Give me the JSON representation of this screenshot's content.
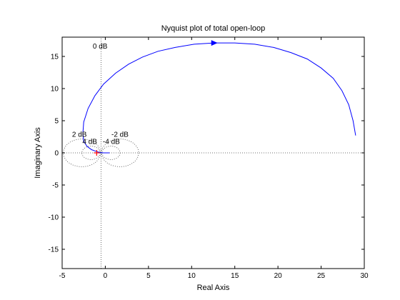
{
  "chart_data": {
    "type": "line",
    "title": "Nyquist plot of total open-loop",
    "xlabel": "Real Axis",
    "ylabel": "Imaginary Axis",
    "xlim": [
      -5,
      30
    ],
    "ylim": [
      -18,
      18
    ],
    "xticks": [
      -5,
      0,
      5,
      10,
      15,
      20,
      25,
      30
    ],
    "yticks": [
      -15,
      -10,
      -5,
      0,
      5,
      10,
      15
    ],
    "grid": "M-circles (dotted)",
    "colors": {
      "curve": "#0000ff",
      "critical_point": "#ff0000",
      "axes": "#000000"
    },
    "series": [
      {
        "x": [
          29.0,
          28.7,
          28.2,
          27.4,
          26.4,
          25.0,
          23.4,
          21.5,
          19.5,
          17.3,
          15.0,
          12.6,
          10.3,
          8.1,
          6.1,
          4.3,
          2.7,
          1.2,
          -0.2,
          -1.2,
          -2.0,
          -2.5,
          -2.6,
          -2.5,
          -2.1,
          -1.6,
          -1.0,
          -0.6,
          -0.2,
          0.2,
          0.5
        ],
        "y": [
          2.7,
          5.0,
          7.5,
          9.7,
          11.6,
          13.2,
          14.6,
          15.6,
          16.4,
          16.9,
          17.1,
          17.1,
          16.9,
          16.4,
          15.8,
          14.9,
          13.8,
          12.4,
          10.7,
          8.9,
          6.9,
          4.8,
          3.0,
          1.8,
          1.0,
          0.5,
          0.2,
          0.05,
          0.0,
          0.0,
          0.0
        ]
      }
    ],
    "arrow_at": {
      "x": 12.6,
      "y": 17.1
    },
    "critical_point": {
      "x": -1,
      "y": 0
    },
    "m_circles": [
      {
        "label": "0 dB",
        "db": 0
      },
      {
        "label": "2 dB",
        "db": 2
      },
      {
        "label": "4 dB",
        "db": 4
      },
      {
        "label": "-2 dB",
        "db": -2
      },
      {
        "label": "-4 dB",
        "db": -4
      }
    ]
  }
}
